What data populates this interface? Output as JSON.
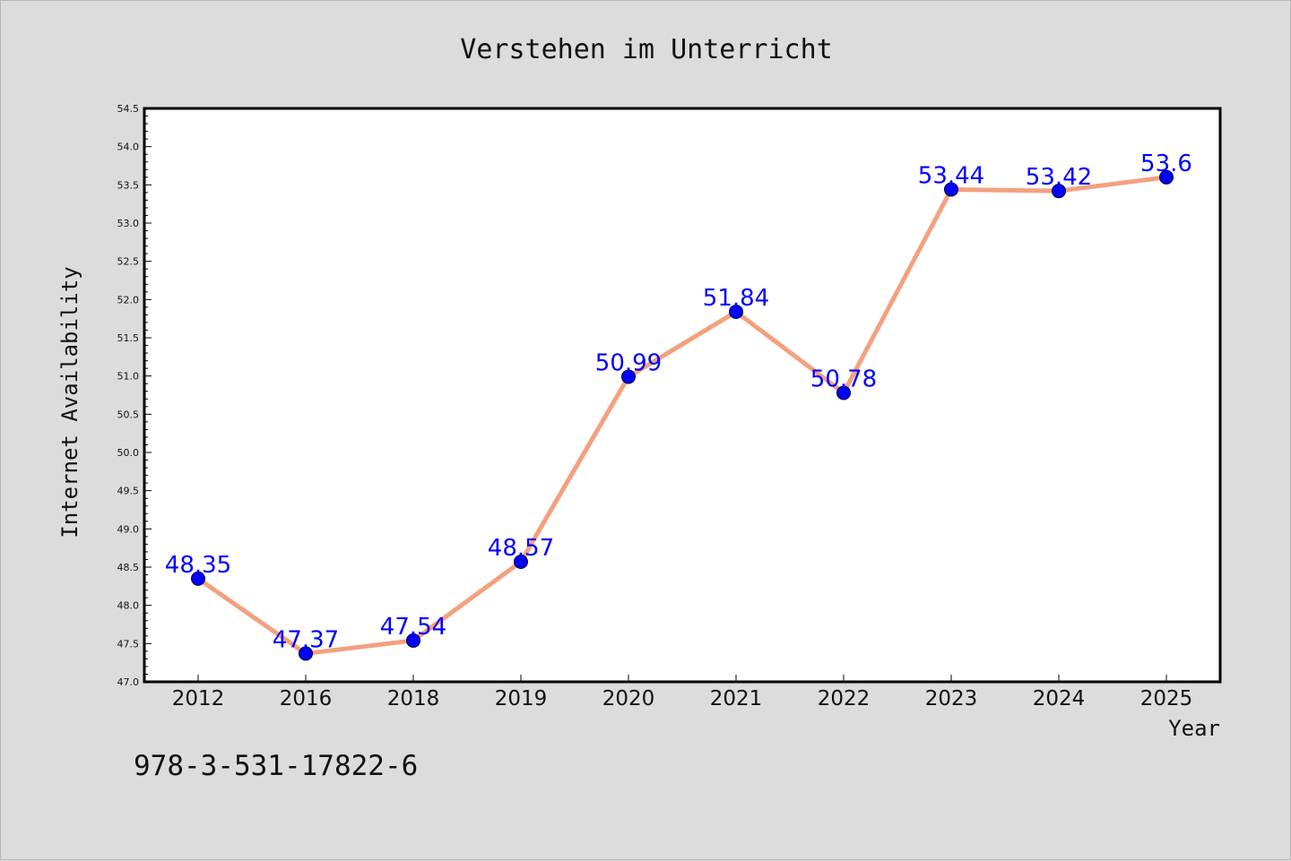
{
  "chart_data": {
    "type": "line",
    "title": "Verstehen im Unterricht",
    "xlabel": "Year",
    "ylabel": "Internet Availability",
    "categories": [
      "2012",
      "2016",
      "2018",
      "2019",
      "2020",
      "2021",
      "2022",
      "2023",
      "2024",
      "2025"
    ],
    "series": [
      {
        "values": [
          48.35,
          47.37,
          47.54,
          48.57,
          50.99,
          51.84,
          50.78,
          53.44,
          53.42,
          53.6
        ],
        "labels": [
          "48.35",
          "47.37",
          "47.54",
          "48.57",
          "50.99",
          "51.84",
          "50.78",
          "53.44",
          "53.42",
          "53.6"
        ],
        "line_color": "#f4a07e",
        "marker_color": "#0000ff"
      }
    ],
    "ylim": [
      47.0,
      54.5
    ],
    "yticks": [
      "47.0",
      "47.5",
      "48.0",
      "48.5",
      "49.0",
      "49.5",
      "50.0",
      "50.5",
      "51.0",
      "51.5",
      "52.0",
      "52.5",
      "53.0",
      "53.5",
      "54.0",
      "54.5"
    ],
    "grid": false,
    "legend": "none"
  },
  "annotation": {
    "isbn": "978-3-531-17822-6"
  }
}
